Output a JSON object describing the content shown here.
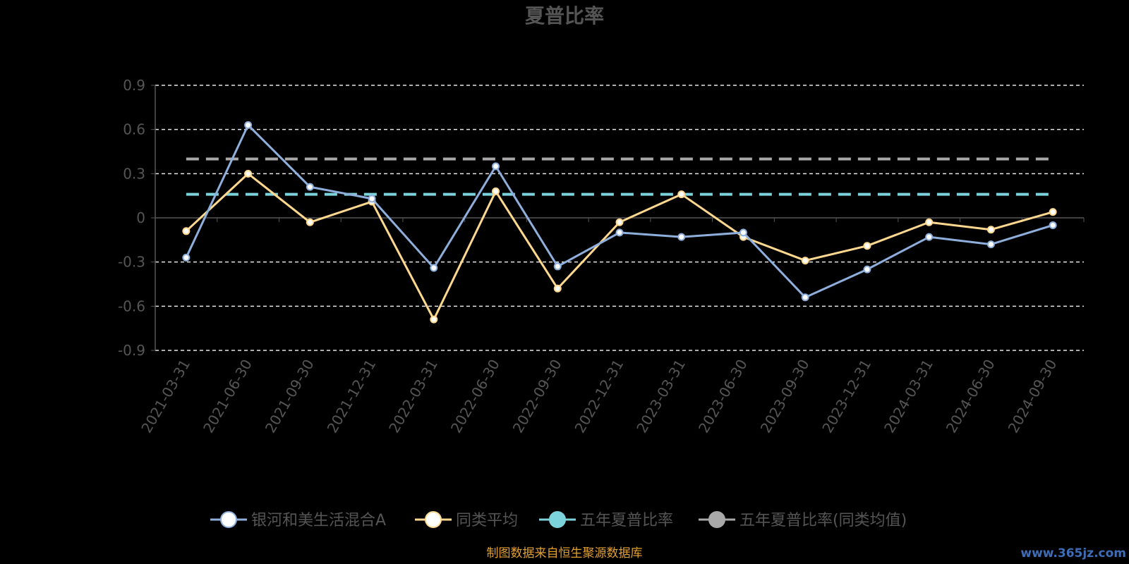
{
  "chart_data": {
    "type": "line",
    "title": "夏普比率",
    "categories": [
      "2021-03-31",
      "2021-06-30",
      "2021-09-30",
      "2021-12-31",
      "2022-03-31",
      "2022-06-30",
      "2022-09-30",
      "2022-12-31",
      "2023-03-31",
      "2023-06-30",
      "2023-09-30",
      "2023-12-31",
      "2024-03-31",
      "2024-06-30",
      "2024-09-30"
    ],
    "y_ticks": [
      "0.9",
      "0.6",
      "0.3",
      "0",
      "-0.3",
      "-0.6",
      "-0.9"
    ],
    "ylim": [
      -0.9,
      0.9
    ],
    "grid": true,
    "legend_position": "bottom",
    "series": [
      {
        "name": "银河和美生活混合A",
        "color": "#8eaedc",
        "marker": "#ffffff",
        "values": [
          -0.27,
          0.63,
          0.21,
          0.13,
          -0.34,
          0.35,
          -0.33,
          -0.1,
          -0.13,
          -0.1,
          -0.54,
          -0.35,
          -0.13,
          -0.18,
          -0.05
        ]
      },
      {
        "name": "同类平均",
        "color": "#ffd88f",
        "marker": "#ffffff",
        "values": [
          -0.09,
          0.3,
          -0.03,
          0.11,
          -0.69,
          0.18,
          -0.48,
          -0.03,
          0.16,
          -0.13,
          -0.29,
          -0.19,
          -0.03,
          -0.08,
          0.04
        ]
      },
      {
        "name": "五年夏普比率",
        "color": "#7dd3dc",
        "marker": "#7dd3dc",
        "constant": 0.16,
        "dashed": true
      },
      {
        "name": "五年夏普比率(同类均值)",
        "color": "#a9a9a9",
        "marker": "#a9a9a9",
        "constant": 0.4,
        "dashed": true
      }
    ]
  },
  "source_text": "制图数据来自恒生聚源数据库",
  "watermark": "www.365jz.com"
}
